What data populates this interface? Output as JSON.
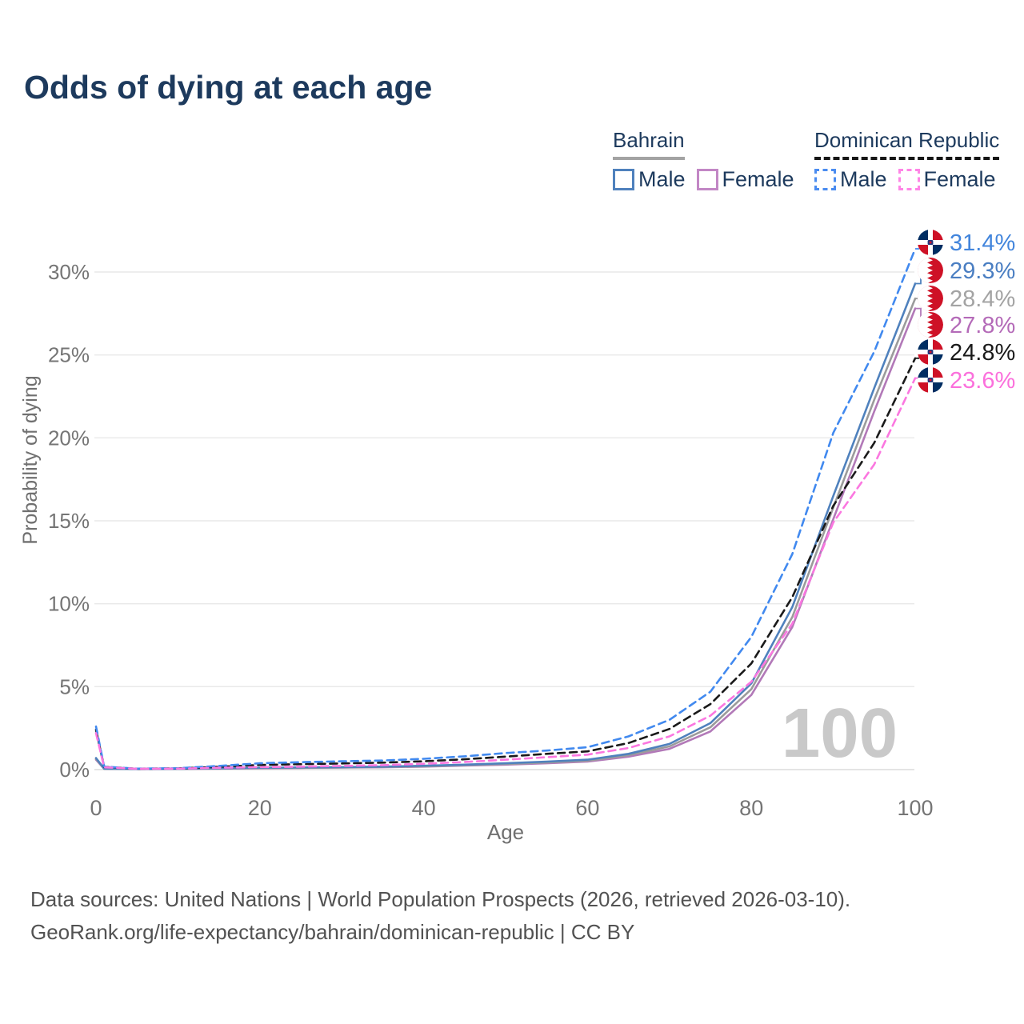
{
  "title": "Odds of dying at each age",
  "legend": {
    "groups": [
      {
        "name": "Bahrain",
        "line_style": "solid",
        "line_color": "#a3a3a3",
        "items": [
          {
            "label": "Male",
            "series": "bahrain-male",
            "color": "#4f81bd",
            "style": "solid"
          },
          {
            "label": "Female",
            "series": "bahrain-female",
            "color": "#c287c5",
            "style": "solid"
          }
        ]
      },
      {
        "name": "Dominican Republic",
        "line_style": "dashed",
        "line_color": "#161616",
        "items": [
          {
            "label": "Male",
            "series": "dominican-male",
            "color": "#4a8cf0",
            "style": "dashed"
          },
          {
            "label": "Female",
            "series": "dominican-female",
            "color": "#ff85e6",
            "style": "dashed"
          }
        ]
      }
    ]
  },
  "watermark": "100",
  "chart_data": {
    "type": "line",
    "title": "Odds of dying at each age",
    "xlabel": "Age",
    "ylabel": "Probability of dying",
    "x_ticks": [
      0,
      20,
      40,
      60,
      80,
      100
    ],
    "y_ticks": [
      {
        "value": 0,
        "label": "0%"
      },
      {
        "value": 5,
        "label": "5%"
      },
      {
        "value": 10,
        "label": "10%"
      },
      {
        "value": 15,
        "label": "15%"
      },
      {
        "value": 20,
        "label": "20%"
      },
      {
        "value": 25,
        "label": "25%"
      },
      {
        "value": 30,
        "label": "30%"
      }
    ],
    "xlim": [
      0,
      100
    ],
    "ylim": [
      0,
      32
    ],
    "grid": true,
    "legend_position": "top-right",
    "x": [
      0,
      1,
      5,
      10,
      15,
      20,
      25,
      30,
      35,
      40,
      45,
      50,
      55,
      60,
      65,
      70,
      75,
      80,
      85,
      90,
      95,
      100
    ],
    "series": [
      {
        "id": "bahrain-female",
        "name": "Bahrain Female",
        "country": "Bahrain",
        "sex": "Female",
        "color": "#b279b8",
        "dashed": false,
        "end_label": "27.8%",
        "label_color": "#b46ab8",
        "flag": "bahrain",
        "values": [
          0.6,
          0.05,
          0.035,
          0.04,
          0.06,
          0.08,
          0.1,
          0.12,
          0.14,
          0.18,
          0.24,
          0.3,
          0.38,
          0.48,
          0.78,
          1.25,
          2.3,
          4.5,
          8.6,
          15.1,
          21.6,
          27.8
        ]
      },
      {
        "id": "bahrain-combined",
        "name": "Bahrain",
        "country": "Bahrain",
        "sex": "Both",
        "color": "#9b9b9b",
        "dashed": false,
        "end_label": "28.4%",
        "label_color": "#a3a3a3",
        "flag": "bahrain",
        "values": [
          0.65,
          0.055,
          0.038,
          0.045,
          0.07,
          0.095,
          0.11,
          0.13,
          0.16,
          0.2,
          0.27,
          0.34,
          0.43,
          0.54,
          0.87,
          1.4,
          2.55,
          4.85,
          9.2,
          15.8,
          22.3,
          28.4
        ]
      },
      {
        "id": "bahrain-male",
        "name": "Bahrain Male",
        "country": "Bahrain",
        "sex": "Male",
        "color": "#4f81bd",
        "dashed": false,
        "end_label": "29.3%",
        "label_color": "#4a7ec2",
        "flag": "bahrain",
        "values": [
          0.7,
          0.06,
          0.04,
          0.05,
          0.08,
          0.11,
          0.13,
          0.15,
          0.18,
          0.23,
          0.3,
          0.38,
          0.48,
          0.6,
          0.95,
          1.55,
          2.8,
          5.2,
          9.8,
          16.5,
          23.0,
          29.3
        ]
      },
      {
        "id": "dominican-combined",
        "name": "Dominican Republic",
        "country": "Dominican Republic",
        "sex": "Both",
        "color": "#1a1a1a",
        "dashed": true,
        "end_label": "24.8%",
        "label_color": "#1a1a1a",
        "flag": "dominican-republic",
        "values": [
          2.4,
          0.16,
          0.055,
          0.07,
          0.17,
          0.28,
          0.33,
          0.37,
          0.42,
          0.5,
          0.62,
          0.78,
          0.95,
          1.1,
          1.6,
          2.45,
          3.95,
          6.4,
          10.4,
          15.9,
          19.7,
          24.8
        ]
      },
      {
        "id": "dominican-male",
        "name": "Dominican Republic Male",
        "country": "Dominican Republic",
        "sex": "Male",
        "color": "#4189ef",
        "dashed": true,
        "end_label": "31.4%",
        "label_color": "#4285dc",
        "flag": "dominican-republic",
        "values": [
          2.6,
          0.18,
          0.06,
          0.08,
          0.22,
          0.38,
          0.45,
          0.5,
          0.55,
          0.65,
          0.8,
          1.0,
          1.15,
          1.35,
          2.0,
          3.0,
          4.7,
          8.0,
          13.0,
          20.3,
          25.2,
          31.4
        ]
      },
      {
        "id": "dominican-female",
        "name": "Dominican Republic Female",
        "country": "Dominican Republic",
        "sex": "Female",
        "color": "#fb77e0",
        "dashed": true,
        "end_label": "23.6%",
        "label_color": "#fb70dc",
        "flag": "dominican-republic",
        "values": [
          2.2,
          0.14,
          0.05,
          0.06,
          0.11,
          0.15,
          0.18,
          0.22,
          0.27,
          0.35,
          0.46,
          0.6,
          0.75,
          0.9,
          1.3,
          2.0,
          3.25,
          5.3,
          8.8,
          14.9,
          18.4,
          23.6
        ]
      }
    ],
    "flag_colors": {
      "bahrain": {
        "red": "#ce1126",
        "white": "#ffffff"
      },
      "dominican-republic": {
        "blue": "#002d62",
        "red": "#ce1126",
        "white": "#ffffff",
        "emblem": "#23357d"
      }
    }
  },
  "footer": {
    "line1": "Data sources: United Nations | World Population Prospects (2026, retrieved 2026-03-10).",
    "line2": "GeoRank.org/life-expectancy/bahrain/dominican-republic | CC BY"
  }
}
